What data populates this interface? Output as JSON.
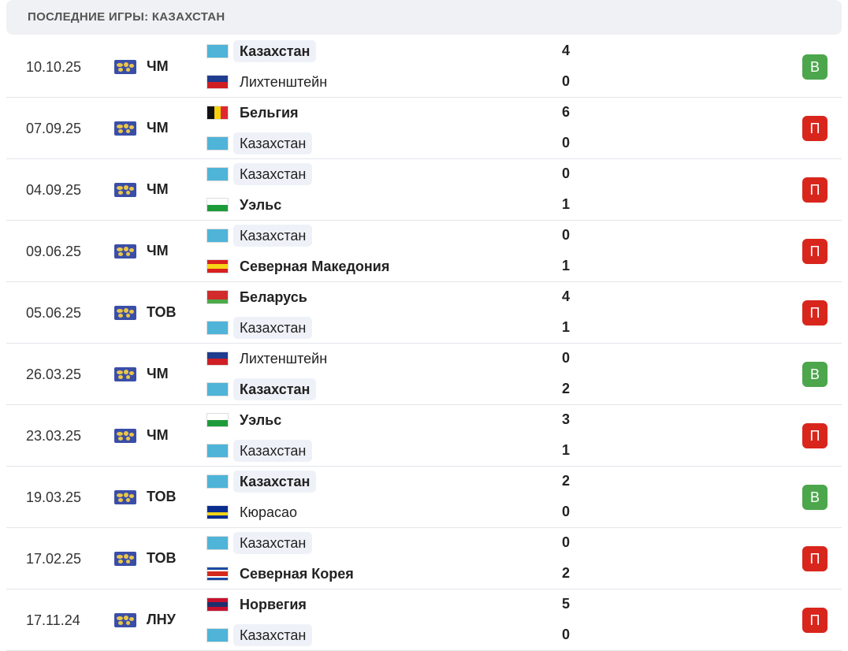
{
  "header": {
    "title": "ПОСЛЕДНИЕ ИГРЫ: КАЗАХСТАН"
  },
  "matches": [
    {
      "date": "10.10.25",
      "competition": "ЧМ",
      "home": {
        "name": "Казахстан",
        "score": 4,
        "highlight": true,
        "flag": [
          "#4fb4d8"
        ]
      },
      "away": {
        "name": "Лихтенштейн",
        "score": 0,
        "flag": [
          "#1f3d8f",
          "#cf1f24"
        ]
      },
      "result": {
        "label": "В",
        "color": "#4ca64c"
      }
    },
    {
      "date": "07.09.25",
      "competition": "ЧМ",
      "home": {
        "name": "Бельгия",
        "score": 6,
        "flag": [
          "#111111",
          "#f5d20e",
          "#e0272f"
        ],
        "flag_vertical": true
      },
      "away": {
        "name": "Казахстан",
        "score": 0,
        "highlight": true,
        "flag": [
          "#4fb4d8"
        ]
      },
      "result": {
        "label": "П",
        "color": "#d8261d"
      }
    },
    {
      "date": "04.09.25",
      "competition": "ЧМ",
      "home": {
        "name": "Казахстан",
        "score": 0,
        "highlight": true,
        "flag": [
          "#4fb4d8"
        ]
      },
      "away": {
        "name": "Уэльс",
        "score": 1,
        "flag": [
          "#ffffff",
          "#1d9b3a"
        ]
      },
      "result": {
        "label": "П",
        "color": "#d8261d"
      }
    },
    {
      "date": "09.06.25",
      "competition": "ЧМ",
      "home": {
        "name": "Казахстан",
        "score": 0,
        "highlight": true,
        "flag": [
          "#4fb4d8"
        ]
      },
      "away": {
        "name": "Северная Македония",
        "score": 1,
        "flag": [
          "#d8201f",
          "#f7d417",
          "#d8201f"
        ]
      },
      "result": {
        "label": "П",
        "color": "#d8261d"
      }
    },
    {
      "date": "05.06.25",
      "competition": "ТОВ",
      "home": {
        "name": "Беларусь",
        "score": 4,
        "flag": [
          "#d12b2b",
          "#d12b2b",
          "#4caa4a"
        ]
      },
      "away": {
        "name": "Казахстан",
        "score": 1,
        "highlight": true,
        "flag": [
          "#4fb4d8"
        ]
      },
      "result": {
        "label": "П",
        "color": "#d8261d"
      }
    },
    {
      "date": "26.03.25",
      "competition": "ЧМ",
      "home": {
        "name": "Лихтенштейн",
        "score": 0,
        "flag": [
          "#1f3d8f",
          "#cf1f24"
        ]
      },
      "away": {
        "name": "Казахстан",
        "score": 2,
        "highlight": true,
        "flag": [
          "#4fb4d8"
        ]
      },
      "result": {
        "label": "В",
        "color": "#4ca64c"
      }
    },
    {
      "date": "23.03.25",
      "competition": "ЧМ",
      "home": {
        "name": "Уэльс",
        "score": 3,
        "flag": [
          "#ffffff",
          "#1d9b3a"
        ]
      },
      "away": {
        "name": "Казахстан",
        "score": 1,
        "highlight": true,
        "flag": [
          "#4fb4d8"
        ]
      },
      "result": {
        "label": "П",
        "color": "#d8261d"
      }
    },
    {
      "date": "19.03.25",
      "competition": "ТОВ",
      "home": {
        "name": "Казахстан",
        "score": 2,
        "highlight": true,
        "flag": [
          "#4fb4d8"
        ]
      },
      "away": {
        "name": "Кюрасао",
        "score": 0,
        "flag": [
          "#0a2d8f",
          "#0a2d8f",
          "#f7d417",
          "#0a2d8f"
        ]
      },
      "result": {
        "label": "В",
        "color": "#4ca64c"
      }
    },
    {
      "date": "17.02.25",
      "competition": "ТОВ",
      "home": {
        "name": "Казахстан",
        "score": 0,
        "highlight": true,
        "flag": [
          "#4fb4d8"
        ]
      },
      "away": {
        "name": "Северная Корея",
        "score": 2,
        "flag": [
          "#1d4aa3",
          "#ffffff",
          "#d52b1e",
          "#d52b1e",
          "#ffffff",
          "#1d4aa3"
        ]
      },
      "result": {
        "label": "П",
        "color": "#d8261d"
      }
    },
    {
      "date": "17.11.24",
      "competition": "ЛНУ",
      "home": {
        "name": "Норвегия",
        "score": 5,
        "flag": [
          "#c8102e",
          "#1e2f6e",
          "#c8102e"
        ]
      },
      "away": {
        "name": "Казахстан",
        "score": 0,
        "highlight": true,
        "flag": [
          "#4fb4d8"
        ]
      },
      "result": {
        "label": "П",
        "color": "#d8261d"
      }
    }
  ]
}
